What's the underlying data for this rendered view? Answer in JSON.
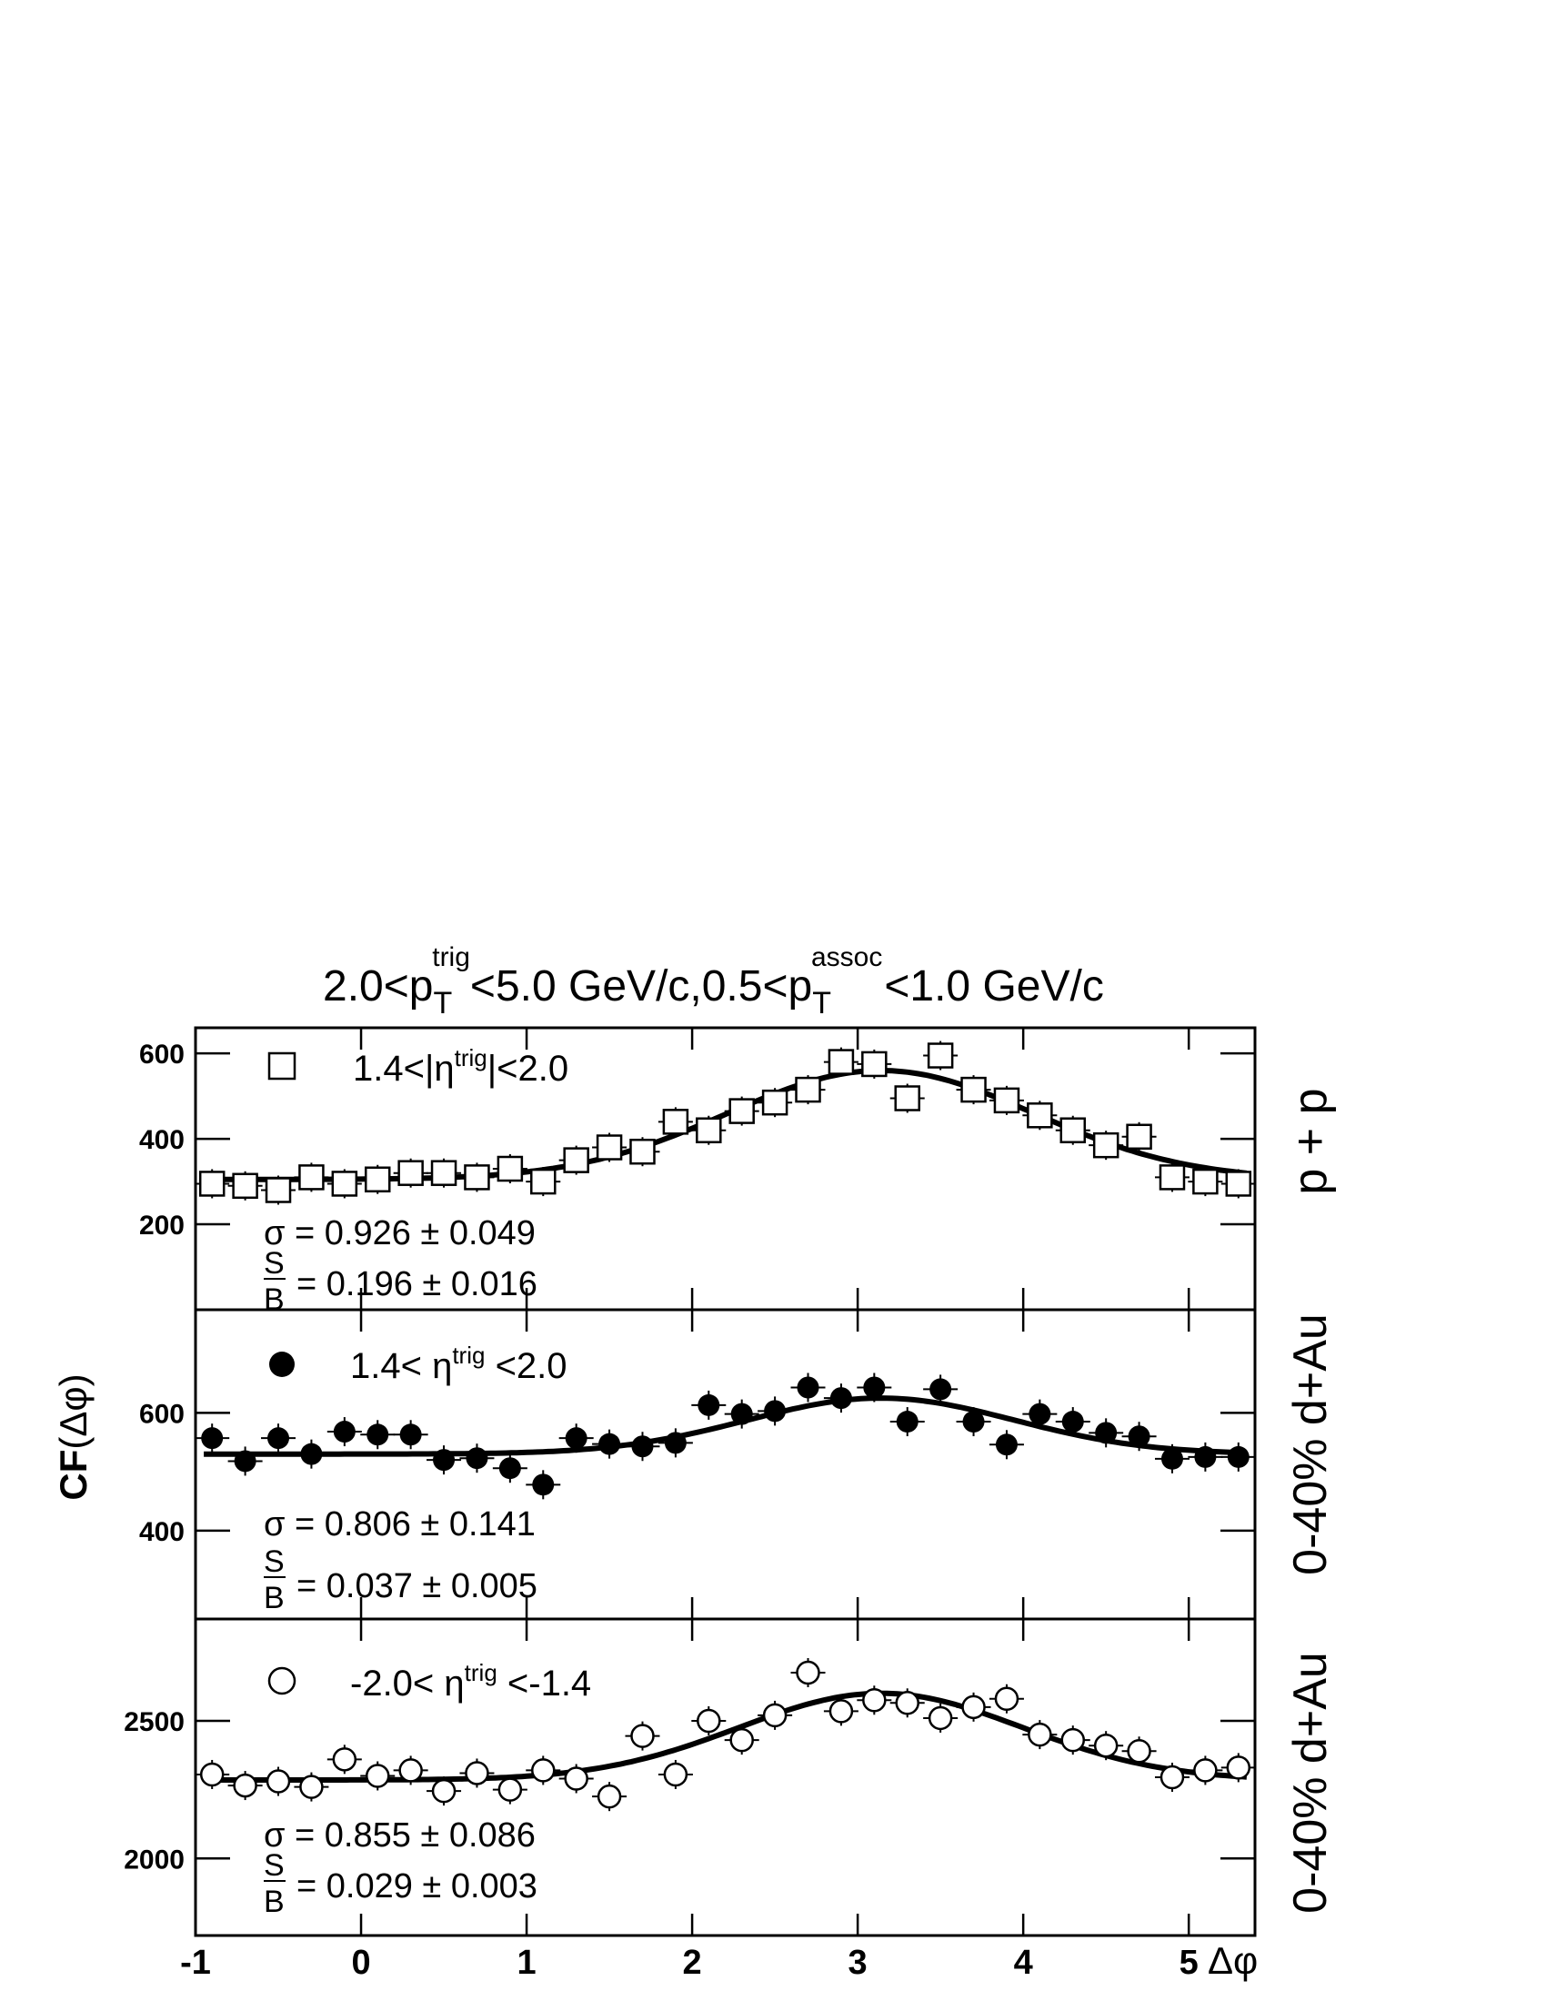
{
  "chart_data": {
    "type": "scatter",
    "title": {
      "t1": "2.0<p",
      "sub1": "T",
      "sup1": "trig",
      "t2": "<5.0 GeV/c,0.5<p",
      "sub2": "T",
      "sup2": "assoc",
      "t3": "<1.0 GeV/c"
    },
    "ylabel": {
      "bold": "CF",
      "rest": "(Δφ)"
    },
    "xlabel": "Δφ",
    "xlim": [
      -1,
      5.4
    ],
    "x_ticks": [
      "-1",
      "0",
      "1",
      "2",
      "3",
      "4",
      "5"
    ],
    "x": [
      -0.9,
      -0.7,
      -0.5,
      -0.3,
      -0.1,
      0.1,
      0.3,
      0.5,
      0.7,
      0.9,
      1.1,
      1.3,
      1.5,
      1.7,
      1.9,
      2.1,
      2.3,
      2.5,
      2.7,
      2.9,
      3.1,
      3.3,
      3.5,
      3.7,
      3.9,
      4.1,
      4.3,
      4.5,
      4.7,
      4.9,
      5.1,
      5.3
    ],
    "panels": [
      {
        "side_label": "p + p",
        "marker": "open-square",
        "legend": {
          "a": "1.4<|η",
          "sup": "trig",
          "b": "|<2.0"
        },
        "ylim": [
          0,
          660
        ],
        "y_ticks": [
          200,
          400,
          600
        ],
        "fit": {
          "pedestal": 305,
          "amplitude": 255,
          "center": 3.14,
          "sigma": 0.926
        },
        "values": [
          295,
          290,
          280,
          310,
          295,
          305,
          320,
          320,
          310,
          330,
          300,
          350,
          380,
          370,
          440,
          420,
          465,
          485,
          515,
          580,
          575,
          495,
          595,
          515,
          490,
          455,
          420,
          385,
          405,
          310,
          300,
          295
        ],
        "sigma_text": "σ = 0.926 ± 0.049",
        "sb_text": "= 0.196 ± 0.016"
      },
      {
        "side_label": "0-40% d+Au",
        "marker": "filled-circle",
        "legend": {
          "a": "1.4< η",
          "sup": "trig",
          "b": " <2.0"
        },
        "ylim": [
          250,
          775
        ],
        "y_ticks": [
          400,
          600
        ],
        "fit": {
          "pedestal": 530,
          "amplitude": 95,
          "center": 3.14,
          "sigma": 0.806
        },
        "values": [
          557,
          518,
          557,
          530,
          568,
          563,
          563,
          520,
          523,
          506,
          478,
          557,
          547,
          543,
          549,
          613,
          598,
          603,
          643,
          625,
          643,
          585,
          640,
          585,
          546,
          598,
          585,
          566,
          560,
          522,
          525,
          525
        ],
        "sigma_text": "σ = 0.806 ± 0.141",
        "sb_text": "= 0.037 ± 0.005"
      },
      {
        "side_label": "0-40% d+Au",
        "marker": "open-circle",
        "legend": {
          "a": "-2.0< η",
          "sup": "trig",
          "b": " <-1.4"
        },
        "ylim": [
          1720,
          2870
        ],
        "y_ticks": [
          2000,
          2500
        ],
        "fit": {
          "pedestal": 2285,
          "amplitude": 315,
          "center": 3.14,
          "sigma": 0.855
        },
        "values": [
          2305,
          2265,
          2280,
          2260,
          2360,
          2300,
          2320,
          2245,
          2310,
          2250,
          2320,
          2290,
          2225,
          2445,
          2305,
          2500,
          2430,
          2520,
          2675,
          2535,
          2575,
          2565,
          2510,
          2550,
          2580,
          2450,
          2430,
          2410,
          2390,
          2295,
          2320,
          2330
        ],
        "sigma_text": "σ = 0.855 ± 0.086",
        "sb_text": "= 0.029 ± 0.003"
      }
    ],
    "sb_fraction": {
      "num": "S",
      "den": "B"
    }
  }
}
